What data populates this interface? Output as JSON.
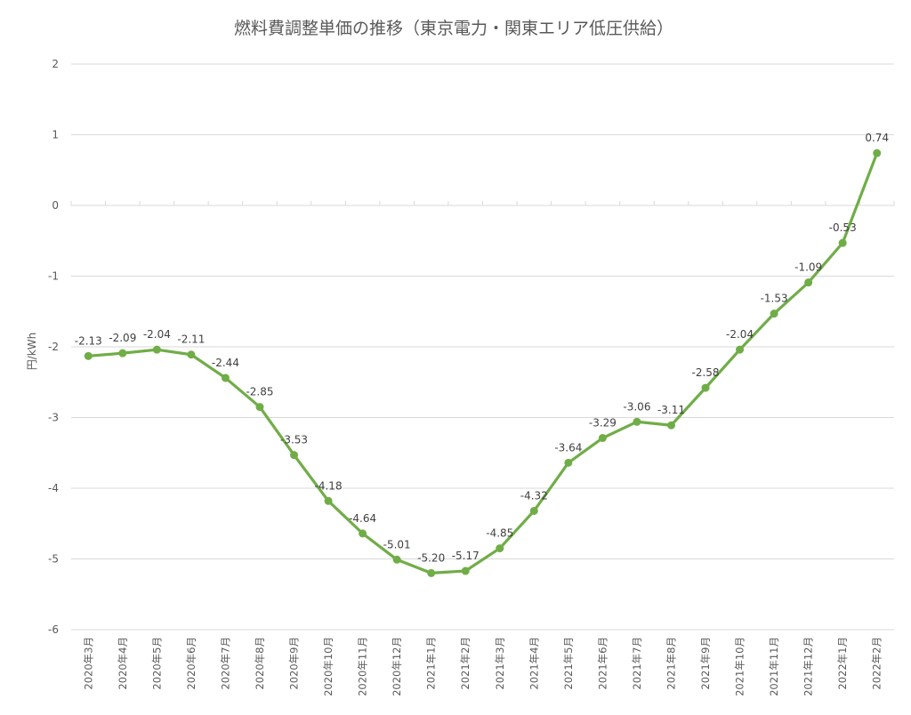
{
  "chart_data": {
    "type": "line",
    "title": "燃料費調整単価の推移（東京電力・関東エリア低圧供給）",
    "xlabel": "",
    "ylabel": "円/kWh",
    "ylim": [
      -6,
      2
    ],
    "yticks": [
      2,
      1,
      0,
      -1,
      -2,
      -3,
      -4,
      -5,
      -6
    ],
    "grid": true,
    "legend": null,
    "line_color": "#70ad47",
    "categories": [
      "2020年3月",
      "2020年4月",
      "2020年5月",
      "2020年6月",
      "2020年7月",
      "2020年8月",
      "2020年9月",
      "2020年10月",
      "2020年11月",
      "2020年12月",
      "2021年1月",
      "2021年2月",
      "2021年3月",
      "2021年4月",
      "2021年5月",
      "2021年6月",
      "2021年7月",
      "2021年8月",
      "2021年9月",
      "2021年10月",
      "2021年11月",
      "2021年12月",
      "2022年1月",
      "2022年2月"
    ],
    "series": [
      {
        "name": "燃料費調整単価",
        "values": [
          -2.13,
          -2.09,
          -2.04,
          -2.11,
          -2.44,
          -2.85,
          -3.53,
          -4.18,
          -4.64,
          -5.01,
          -5.2,
          -5.17,
          -4.85,
          -4.32,
          -3.64,
          -3.29,
          -3.06,
          -3.11,
          -2.58,
          -2.04,
          -1.53,
          -1.09,
          -0.53,
          0.74
        ],
        "labels": [
          "-2.13",
          "-2.09",
          "-2.04",
          "-2.11",
          "-2.44",
          "-2.85",
          "-3.53",
          "-4.18",
          "-4.64",
          "-5.01",
          "-5.20",
          "-5.17",
          "-4.85",
          "-4.32",
          "-3.64",
          "-3.29",
          "-3.06",
          "-3.11",
          "-2.58",
          "-2.04",
          "-1.53",
          "-1.09",
          "-0.53",
          "0.74"
        ]
      }
    ]
  }
}
